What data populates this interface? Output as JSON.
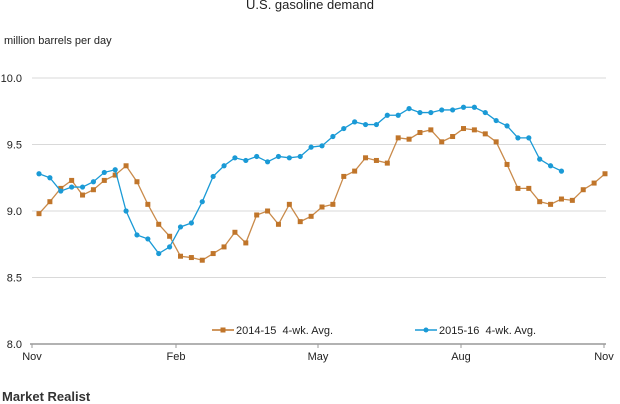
{
  "chart_data": {
    "type": "line",
    "title": "U.S. gasoline demand",
    "ylabel": "million barrels per day",
    "xlabel": "",
    "ylim": [
      8.0,
      10.0
    ],
    "yticks": [
      "8.0",
      "8.5",
      "9.0",
      "9.5",
      "10.0"
    ],
    "xticks": [
      "Nov",
      "Feb",
      "May",
      "Aug",
      "Nov"
    ],
    "grid": true,
    "legend_position": "bottom-center",
    "series": [
      {
        "name": "2014-15  4-wk. Avg.",
        "color": "#c0752a",
        "marker": "square",
        "values": [
          8.98,
          9.07,
          9.17,
          9.23,
          9.12,
          9.16,
          9.23,
          9.27,
          9.34,
          9.22,
          9.05,
          8.9,
          8.81,
          8.66,
          8.65,
          8.63,
          8.68,
          8.73,
          8.84,
          8.76,
          8.97,
          9.0,
          8.9,
          9.05,
          8.92,
          8.96,
          9.03,
          9.05,
          9.26,
          9.3,
          9.4,
          9.38,
          9.36,
          9.55,
          9.54,
          9.59,
          9.61,
          9.52,
          9.56,
          9.62,
          9.61,
          9.58,
          9.52,
          9.35,
          9.17,
          9.17,
          9.07,
          9.05,
          9.09,
          9.08,
          9.16,
          9.21,
          9.28
        ]
      },
      {
        "name": "2015-16  4-wk. Avg.",
        "color": "#1a9ad6",
        "marker": "circle",
        "values": [
          9.28,
          9.25,
          9.15,
          9.18,
          9.18,
          9.22,
          9.29,
          9.31,
          9.0,
          8.82,
          8.79,
          8.68,
          8.73,
          8.88,
          8.91,
          9.07,
          9.26,
          9.34,
          9.4,
          9.38,
          9.41,
          9.37,
          9.41,
          9.4,
          9.41,
          9.48,
          9.49,
          9.56,
          9.62,
          9.67,
          9.65,
          9.65,
          9.72,
          9.72,
          9.77,
          9.74,
          9.74,
          9.76,
          9.76,
          9.78,
          9.78,
          9.74,
          9.68,
          9.64,
          9.55,
          9.55,
          9.39,
          9.34,
          9.3
        ]
      }
    ]
  },
  "logo": "Market Realist"
}
